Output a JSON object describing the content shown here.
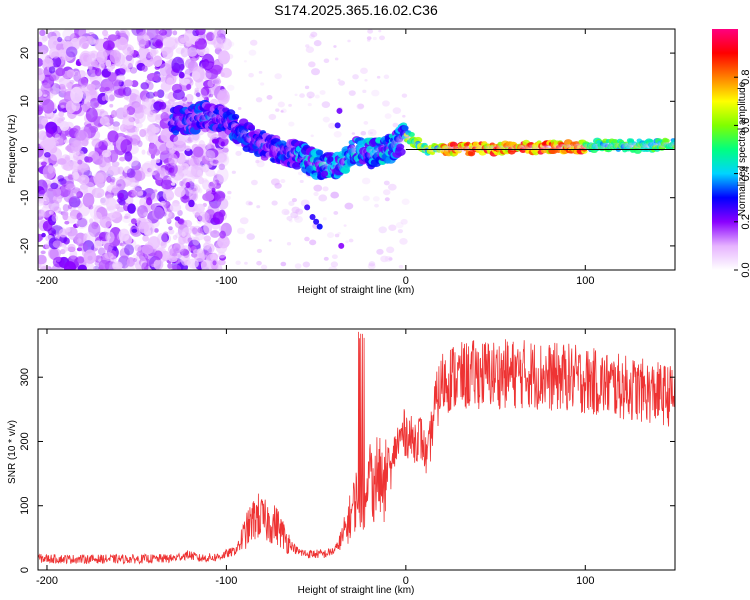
{
  "title": "S174.2025.365.16.02.C36",
  "chart_data": [
    {
      "type": "heatmap",
      "name": "spectrogram",
      "xlabel": "Height of straight line (km)",
      "ylabel": "Frequency (Hz)",
      "xlim": [
        -205,
        150
      ],
      "ylim": [
        -25,
        25
      ],
      "xticks": [
        -200,
        -100,
        0,
        100
      ],
      "yticks": [
        -20,
        -10,
        0,
        10,
        20
      ],
      "colorbar": {
        "label": "Normalized spectral amplitude",
        "range": [
          0,
          1
        ],
        "ticks": [
          0.0,
          0.2,
          0.4,
          0.6,
          0.8
        ],
        "tick_labels": [
          "0.0",
          "0.2",
          "0.4",
          "0.6",
          "0.8"
        ],
        "colors": [
          "#ffffff",
          "#e6b3ff",
          "#8a00ff",
          "#0000ff",
          "#00d4ff",
          "#00ff80",
          "#80ff00",
          "#ffff00",
          "#ff8000",
          "#ff0000",
          "#ff0080"
        ]
      },
      "ridge": [
        [
          -125,
          6
        ],
        [
          -110,
          7
        ],
        [
          -100,
          6
        ],
        [
          -90,
          3
        ],
        [
          -80,
          1
        ],
        [
          -70,
          0
        ],
        [
          -60,
          -1
        ],
        [
          -50,
          -3
        ],
        [
          -40,
          -4
        ],
        [
          -35,
          -3
        ],
        [
          -30,
          0
        ],
        [
          -20,
          -1
        ],
        [
          -10,
          0
        ],
        [
          0,
          3
        ],
        [
          10,
          0
        ],
        [
          150,
          1
        ]
      ],
      "reference_line_hz": 0
    },
    {
      "type": "line",
      "name": "snr",
      "xlabel": "Height of straight line (km)",
      "ylabel": "SNR (10 * v/v)",
      "xlim": [
        -205,
        150
      ],
      "ylim": [
        0,
        375
      ],
      "xticks": [
        -200,
        -100,
        0,
        100
      ],
      "yticks": [
        0,
        100,
        200,
        300
      ],
      "color": "#ee3333",
      "series": [
        {
          "name": "SNR envelope (mean)",
          "x": [
            -205,
            -190,
            -170,
            -150,
            -130,
            -121,
            -115,
            -105,
            -95,
            -88,
            -83,
            -78,
            -72,
            -66,
            -60,
            -55,
            -50,
            -45,
            -40,
            -36,
            -32,
            -28,
            -25,
            -22,
            -20,
            -18,
            -16,
            -14,
            -12,
            -10,
            -8,
            -6,
            -4,
            -2,
            0,
            4,
            8,
            12,
            16,
            20,
            25,
            30,
            40,
            50,
            60,
            70,
            80,
            90,
            100,
            110,
            120,
            130,
            140,
            150
          ],
          "values": [
            18,
            17,
            17,
            17,
            18,
            24,
            18,
            20,
            30,
            65,
            85,
            75,
            70,
            45,
            28,
            25,
            25,
            25,
            30,
            45,
            75,
            110,
            120,
            90,
            180,
            130,
            150,
            140,
            120,
            170,
            150,
            190,
            200,
            210,
            215,
            200,
            210,
            170,
            250,
            290,
            300,
            300,
            305,
            305,
            305,
            305,
            300,
            300,
            295,
            290,
            285,
            280,
            275,
            270
          ]
        }
      ]
    }
  ]
}
